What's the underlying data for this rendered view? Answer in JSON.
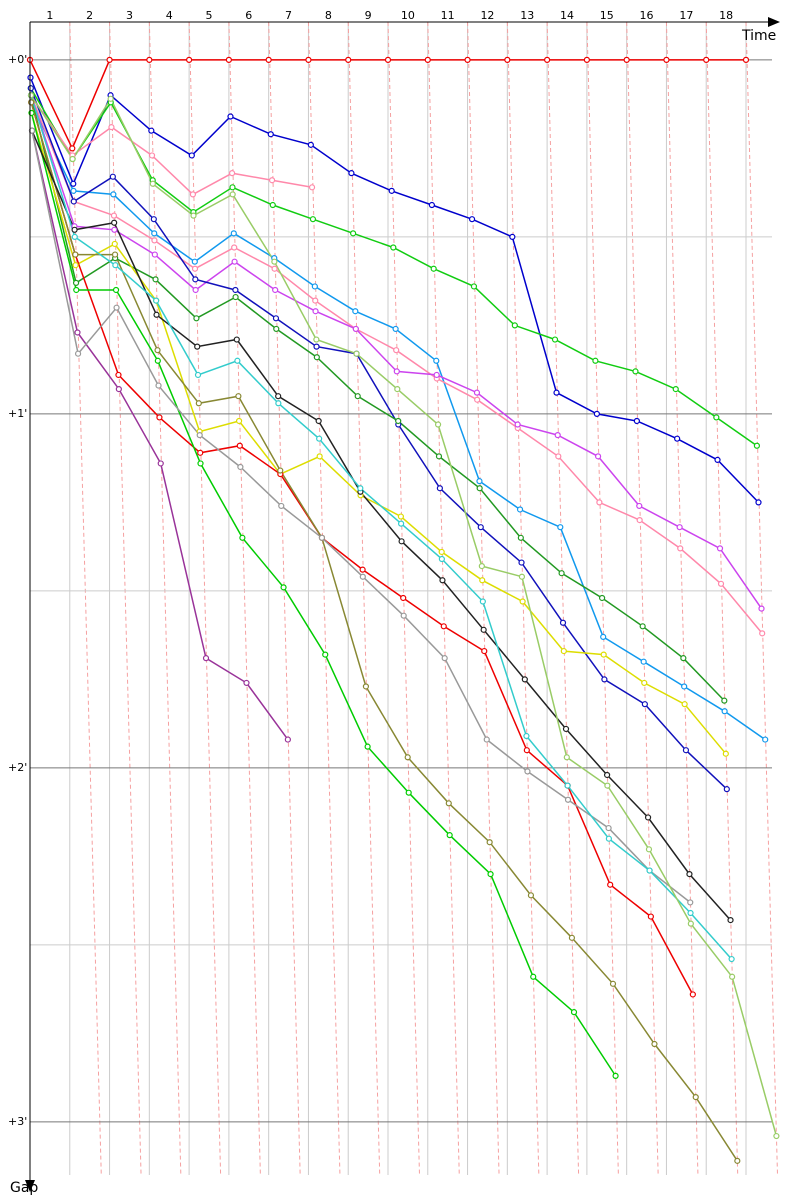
{
  "chart_data": {
    "type": "line",
    "x_label": "Time",
    "y_label": "Gap",
    "x": [
      0,
      1,
      2,
      3,
      4,
      5,
      6,
      7,
      8,
      9,
      10,
      11,
      12,
      13,
      14,
      15,
      16,
      17,
      18
    ],
    "xlim": [
      0,
      18
    ],
    "xticks": [
      1,
      2,
      3,
      4,
      5,
      6,
      7,
      8,
      9,
      10,
      11,
      12,
      13,
      14,
      15,
      16,
      17,
      18
    ],
    "ylim": [
      -0.107,
      3.15
    ],
    "inverted_y": true,
    "yticks": [
      {
        "value": 0,
        "label": "+0'"
      },
      {
        "value": 1,
        "label": "+1'"
      },
      {
        "value": 2,
        "label": "+2'"
      },
      {
        "value": 3,
        "label": "+3'"
      }
    ],
    "minor_yticks": [
      0.5,
      1.5,
      2.5
    ],
    "grid": true,
    "series": [
      {
        "color": "#ee0000",
        "values": [
          0,
          0.25,
          0,
          0,
          0,
          0,
          0,
          0,
          0,
          0,
          0,
          0,
          0,
          0,
          0,
          0,
          0,
          0,
          0
        ]
      },
      {
        "color": "#0000cc",
        "values": [
          0.05,
          0.35,
          0.1,
          0.2,
          0.27,
          0.16,
          0.21,
          0.24,
          0.32,
          0.37,
          0.41,
          0.45,
          0.5,
          0.94,
          1.0,
          1.02,
          1.07,
          1.13,
          1.25
        ]
      },
      {
        "color": "#11cc11",
        "values": [
          0.08,
          0.28,
          0.12,
          0.34,
          0.43,
          0.36,
          0.41,
          0.45,
          0.49,
          0.53,
          0.59,
          0.64,
          0.75,
          0.79,
          0.85,
          0.88,
          0.93,
          1.01,
          1.09
        ]
      },
      {
        "color": "#ff88aa",
        "values": [
          0.1,
          0.27,
          0.19,
          0.27,
          0.38,
          0.32,
          0.34,
          0.36,
          null,
          null,
          null,
          null,
          null,
          null,
          null,
          null,
          null,
          null,
          null
        ]
      },
      {
        "color": "#1199ee",
        "values": [
          0.12,
          0.37,
          0.38,
          0.49,
          0.57,
          0.49,
          0.56,
          0.64,
          0.71,
          0.76,
          0.85,
          1.19,
          1.27,
          1.32,
          1.63,
          1.7,
          1.77,
          1.84,
          1.92
        ]
      },
      {
        "color": "#ff88aa",
        "values": [
          0.1,
          0.4,
          0.44,
          0.51,
          0.59,
          0.53,
          0.59,
          0.68,
          0.76,
          0.82,
          0.9,
          0.96,
          1.04,
          1.12,
          1.25,
          1.3,
          1.38,
          1.48,
          1.62
        ]
      },
      {
        "color": "#cc44ee",
        "values": [
          0.1,
          0.47,
          0.48,
          0.55,
          0.65,
          0.57,
          0.65,
          0.71,
          0.76,
          0.88,
          0.89,
          0.94,
          1.03,
          1.06,
          1.12,
          1.26,
          1.32,
          1.38,
          1.55
        ]
      },
      {
        "color": "#1111bb",
        "values": [
          0.08,
          0.4,
          0.33,
          0.45,
          0.62,
          0.65,
          0.73,
          0.81,
          0.83,
          1.03,
          1.21,
          1.32,
          1.42,
          1.59,
          1.75,
          1.82,
          1.95,
          2.06,
          null
        ]
      },
      {
        "color": "#229922",
        "values": [
          0.1,
          0.63,
          0.56,
          0.62,
          0.73,
          0.67,
          0.76,
          0.84,
          0.95,
          1.02,
          1.12,
          1.21,
          1.35,
          1.45,
          1.52,
          1.6,
          1.69,
          1.81,
          null
        ]
      },
      {
        "color": "#dddd00",
        "values": [
          0.15,
          0.58,
          0.52,
          0.68,
          1.05,
          1.02,
          1.17,
          1.12,
          1.23,
          1.29,
          1.39,
          1.47,
          1.53,
          1.67,
          1.68,
          1.76,
          1.82,
          1.96,
          null
        ]
      },
      {
        "color": "#ee0000",
        "values": [
          0.12,
          0.55,
          0.89,
          1.01,
          1.11,
          1.09,
          1.17,
          1.35,
          1.44,
          1.52,
          1.6,
          1.67,
          1.95,
          2.05,
          2.33,
          2.42,
          2.64,
          null,
          null
        ]
      },
      {
        "color": "#00cc00",
        "values": [
          0.15,
          0.65,
          0.65,
          0.85,
          1.14,
          1.35,
          1.49,
          1.68,
          1.94,
          2.07,
          2.19,
          2.3,
          2.59,
          2.69,
          2.87,
          null,
          null,
          null,
          null
        ]
      },
      {
        "color": "#888833",
        "values": [
          0.12,
          0.55,
          0.55,
          0.82,
          0.97,
          0.95,
          1.16,
          1.35,
          1.77,
          1.97,
          2.1,
          2.21,
          2.36,
          2.48,
          2.61,
          2.78,
          2.93,
          3.11,
          null
        ]
      },
      {
        "color": "#993399",
        "values": [
          0.2,
          0.77,
          0.93,
          1.14,
          1.69,
          1.76,
          1.92,
          null,
          null,
          null,
          null,
          null,
          null,
          null,
          null,
          null,
          null,
          null,
          null
        ]
      },
      {
        "color": "#222222",
        "values": [
          0.2,
          0.48,
          0.46,
          0.72,
          0.81,
          0.79,
          0.95,
          1.02,
          1.22,
          1.36,
          1.47,
          1.61,
          1.75,
          1.89,
          2.02,
          2.14,
          2.3,
          2.43,
          null
        ]
      },
      {
        "color": "#999999",
        "values": [
          0.2,
          0.83,
          0.7,
          0.92,
          1.06,
          1.15,
          1.26,
          1.35,
          1.46,
          1.57,
          1.69,
          1.92,
          2.01,
          2.09,
          2.17,
          2.29,
          2.38,
          null,
          null
        ]
      },
      {
        "color": "#33cccc",
        "values": [
          0.1,
          0.5,
          0.58,
          0.68,
          0.89,
          0.85,
          0.97,
          1.07,
          1.21,
          1.31,
          1.41,
          1.53,
          1.91,
          2.05,
          2.2,
          2.29,
          2.41,
          2.54,
          null
        ]
      },
      {
        "color": "#99cc66",
        "values": [
          0.1,
          0.28,
          0.11,
          0.35,
          0.44,
          0.38,
          0.57,
          0.79,
          0.83,
          0.93,
          1.03,
          1.43,
          1.46,
          1.97,
          2.05,
          2.23,
          2.44,
          2.59,
          3.04
        ]
      }
    ]
  }
}
